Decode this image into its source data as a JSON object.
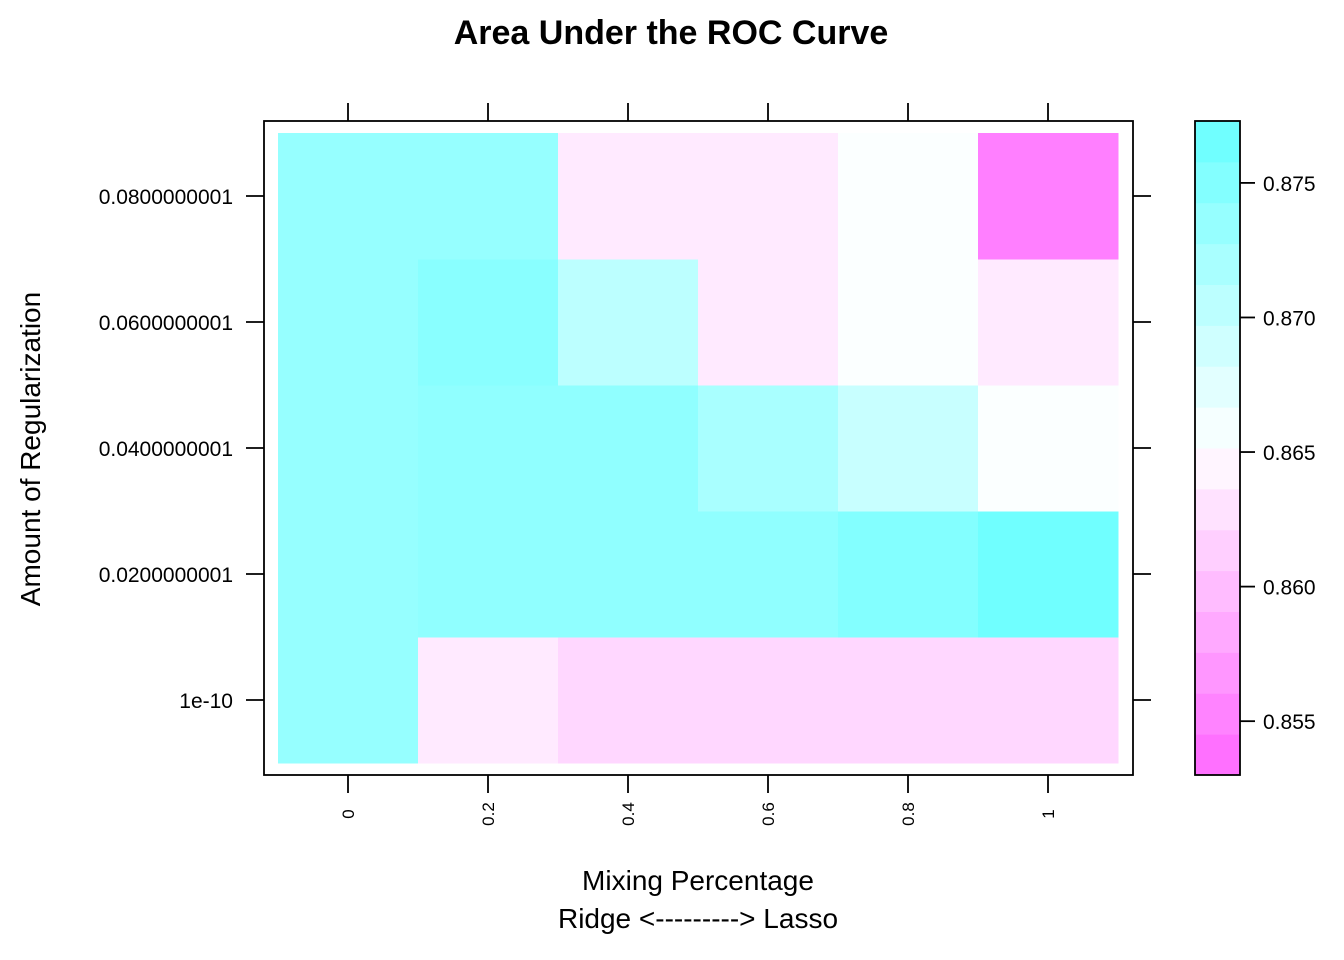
{
  "chart_data": {
    "type": "heatmap",
    "title": "Area Under the ROC Curve",
    "xlabel": "Mixing Percentage",
    "xlabel_line2": "Ridge <---------> Lasso",
    "ylabel": "Amount of Regularization",
    "x": [
      0,
      0.2,
      0.4,
      0.6,
      0.8,
      1
    ],
    "x_tick_labels": [
      "0",
      "0.2",
      "0.4",
      "0.6",
      "0.8",
      "1"
    ],
    "y": [
      1e-10,
      0.0200000001,
      0.0400000001,
      0.0600000001,
      0.0800000001
    ],
    "y_tick_labels": [
      "1e-10",
      "0.0200000001",
      "0.0400000001",
      "0.0600000001",
      "0.0800000001"
    ],
    "values": [
      [
        0.8735,
        0.8635,
        0.862,
        0.862,
        0.862,
        0.862
      ],
      [
        0.8735,
        0.874,
        0.874,
        0.874,
        0.875,
        0.8765
      ],
      [
        0.8735,
        0.874,
        0.874,
        0.872,
        0.8695,
        0.8655
      ],
      [
        0.8735,
        0.8745,
        0.8705,
        0.8635,
        0.8655,
        0.8635
      ],
      [
        0.8735,
        0.8735,
        0.8635,
        0.8635,
        0.8655,
        0.855
      ]
    ],
    "colorbar": {
      "min": 0.853,
      "max": 0.8773,
      "ticks": [
        0.855,
        0.86,
        0.865,
        0.87,
        0.875
      ],
      "tick_labels": [
        "0.855",
        "0.860",
        "0.865",
        "0.870",
        "0.875"
      ],
      "low_color": "#ff66ff",
      "mid_color": "#ffffff",
      "high_color": "#66ffff"
    },
    "grid": false,
    "legend": "right"
  }
}
